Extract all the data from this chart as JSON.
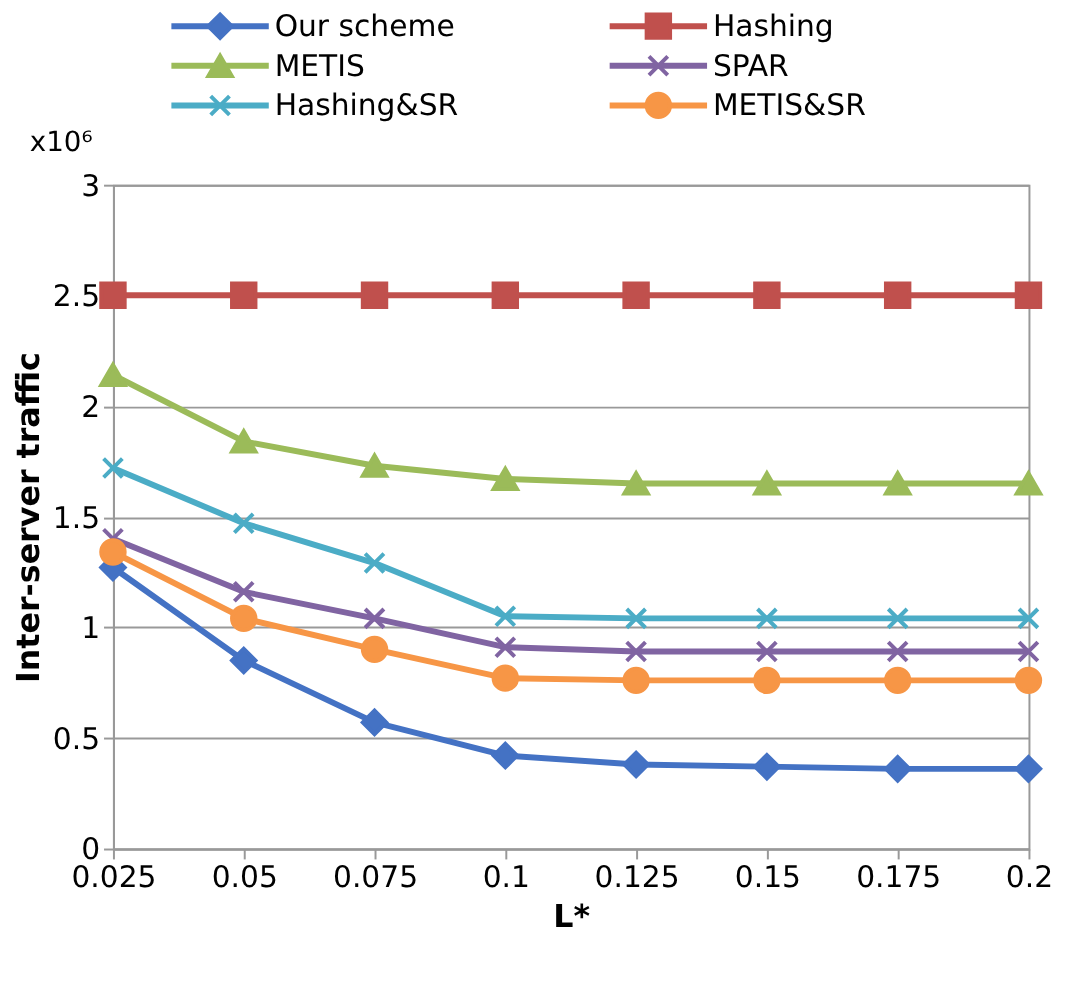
{
  "chart_data": {
    "type": "line",
    "xlabel": "L*",
    "ylabel": "Inter-server traffic",
    "annotations": [
      "x10⁶"
    ],
    "categories": [
      "0.025",
      "0.05",
      "0.075",
      "0.1",
      "0.125",
      "0.15",
      "0.175",
      "0.2"
    ],
    "series": [
      {
        "name": "Our scheme",
        "color": "#4472c4",
        "marker": "diamond",
        "values": [
          1.27,
          0.85,
          0.57,
          0.42,
          0.38,
          0.37,
          0.36,
          0.36
        ]
      },
      {
        "name": "Hashing",
        "color": "#c0504d",
        "marker": "square",
        "values": [
          2.5,
          2.5,
          2.5,
          2.5,
          2.5,
          2.5,
          2.5,
          2.5
        ]
      },
      {
        "name": "METIS",
        "color": "#9bbb59",
        "marker": "triangle",
        "values": [
          2.14,
          1.84,
          1.73,
          1.67,
          1.65,
          1.65,
          1.65,
          1.65
        ]
      },
      {
        "name": "SPAR",
        "color": "#8064a2",
        "marker": "cross",
        "values": [
          1.4,
          1.16,
          1.04,
          0.91,
          0.89,
          0.89,
          0.89,
          0.89
        ]
      },
      {
        "name": "Hashing&SR",
        "color": "#4bacc6",
        "marker": "cross",
        "values": [
          1.72,
          1.47,
          1.29,
          1.05,
          1.04,
          1.04,
          1.04,
          1.04
        ]
      },
      {
        "name": "METIS&SR",
        "color": "#f79646",
        "marker": "circle",
        "values": [
          1.34,
          1.04,
          0.9,
          0.77,
          0.76,
          0.76,
          0.76,
          0.76
        ]
      }
    ],
    "ylim": [
      0,
      3
    ],
    "yticks": [
      0,
      0.5,
      1,
      1.5,
      2,
      2.5,
      3
    ],
    "grid": "y",
    "legend": "top",
    "line_style": "solid"
  }
}
